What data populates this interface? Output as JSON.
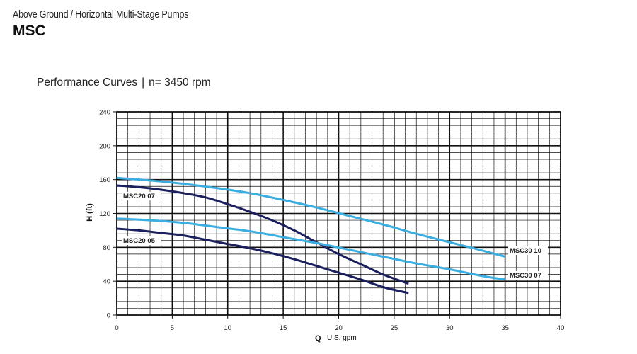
{
  "header": {
    "subtitle": "Above Ground / Horizontal Multi-Stage Pumps",
    "title": "MSC"
  },
  "chart_heading": {
    "label": "Performance Curves",
    "separator": "|",
    "speed": "n= 3450 rpm"
  },
  "chart_data": {
    "type": "line",
    "xlabel_symbol": "Q",
    "xlabel": "U.S. gpm",
    "ylabel": "H (ft)",
    "xlim": [
      0,
      40
    ],
    "ylim": [
      0,
      240
    ],
    "xticks": [
      0,
      5,
      10,
      15,
      20,
      25,
      30,
      35,
      40
    ],
    "yticks": [
      0,
      40,
      80,
      120,
      160,
      200,
      240
    ],
    "grid": true,
    "series": [
      {
        "name": "MSC20 07",
        "color": "#1b1f5e",
        "x": [
          0,
          2,
          4,
          6,
          8,
          10,
          12,
          14,
          16,
          18,
          20,
          22,
          24,
          26.3
        ],
        "y": [
          153,
          151,
          148,
          144,
          139,
          131,
          122,
          112,
          100,
          86,
          72,
          60,
          48,
          37
        ]
      },
      {
        "name": "MSC20 05",
        "color": "#1b1f5e",
        "x": [
          0,
          2,
          4,
          6,
          8,
          10,
          12,
          14,
          16,
          18,
          20,
          22,
          24,
          26.3
        ],
        "y": [
          102,
          100,
          97,
          94,
          89,
          84,
          79,
          73,
          66,
          58,
          50,
          42,
          33,
          26
        ]
      },
      {
        "name": "MSC30 10",
        "color": "#3aaee0",
        "x": [
          0,
          3,
          6,
          9,
          12,
          15,
          18,
          21,
          24,
          27,
          30,
          33,
          35
        ],
        "y": [
          162,
          159,
          155,
          150,
          144,
          136,
          127,
          117,
          107,
          96,
          86,
          76,
          69
        ]
      },
      {
        "name": "MSC30 07",
        "color": "#3aaee0",
        "x": [
          0,
          3,
          6,
          9,
          12,
          15,
          18,
          21,
          24,
          27,
          30,
          33,
          35
        ],
        "y": [
          114,
          112,
          109,
          104,
          99,
          92,
          85,
          77,
          69,
          61,
          54,
          46,
          42
        ]
      }
    ]
  }
}
